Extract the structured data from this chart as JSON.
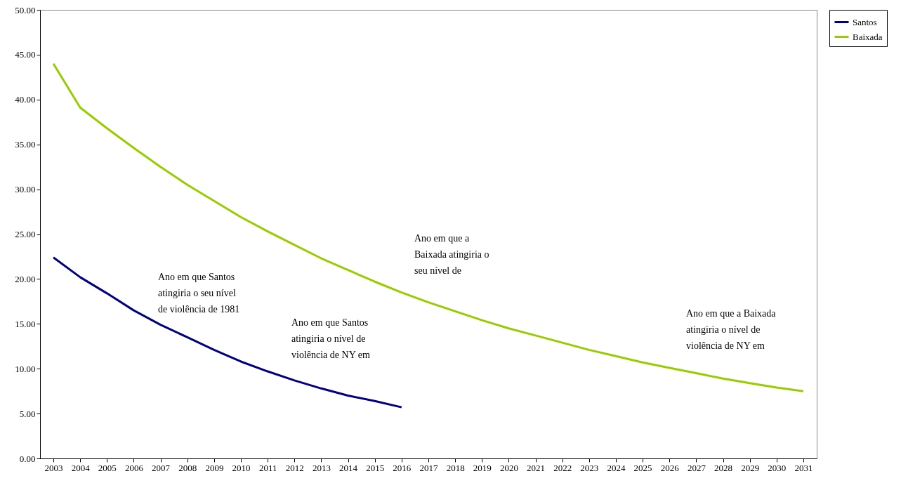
{
  "chart_data": {
    "type": "line",
    "categories": [
      "2003",
      "2004",
      "2005",
      "2006",
      "2007",
      "2008",
      "2009",
      "2010",
      "2011",
      "2012",
      "2013",
      "2014",
      "2015",
      "2016",
      "2017",
      "2018",
      "2019",
      "2020",
      "2021",
      "2022",
      "2023",
      "2024",
      "2025",
      "2026",
      "2027",
      "2028",
      "2029",
      "2030",
      "2031"
    ],
    "series": [
      {
        "name": "Santos",
        "color": "#000080",
        "values": [
          22.4,
          20.2,
          18.4,
          16.5,
          14.9,
          13.5,
          12.1,
          10.8,
          9.7,
          8.7,
          7.8,
          7.0,
          6.4,
          5.7,
          null,
          null,
          null,
          null,
          null,
          null,
          null,
          null,
          null,
          null,
          null,
          null,
          null,
          null,
          null
        ]
      },
      {
        "name": "Baixada",
        "color": "#99cc00",
        "values": [
          44.0,
          39.1,
          36.8,
          34.6,
          32.5,
          30.5,
          28.7,
          26.9,
          25.3,
          23.8,
          22.3,
          21.0,
          19.7,
          18.5,
          17.4,
          16.4,
          15.4,
          14.5,
          13.7,
          12.9,
          12.1,
          11.4,
          10.7,
          10.1,
          9.5,
          8.9,
          8.4,
          7.9,
          7.5
        ]
      }
    ],
    "ylim": [
      0,
      50
    ],
    "yticks": [
      {
        "value": 0,
        "label": "0.00"
      },
      {
        "value": 5,
        "label": "5.00"
      },
      {
        "value": 10,
        "label": "10.00"
      },
      {
        "value": 15,
        "label": "15.00"
      },
      {
        "value": 20,
        "label": "20.00"
      },
      {
        "value": 25,
        "label": "25.00"
      },
      {
        "value": 30,
        "label": "30.00"
      },
      {
        "value": 35,
        "label": "35.00"
      },
      {
        "value": 40,
        "label": "40.00"
      },
      {
        "value": 45,
        "label": "45.00"
      },
      {
        "value": 50,
        "label": "50.00"
      }
    ],
    "grid": false,
    "legend": "right",
    "marker": "none",
    "line_style": "solid",
    "annotations": [
      "Ano em que Santos\natingiria o seu  nível\nde violência de 1981",
      "Ano em que Santos\natingiria o nível de\nviolência de NY em",
      "Ano em que a\nBaixada atingiria o\nseu  nível de",
      "Ano em que a Baixada\natingiria o nível de\nviolência de NY em"
    ]
  }
}
